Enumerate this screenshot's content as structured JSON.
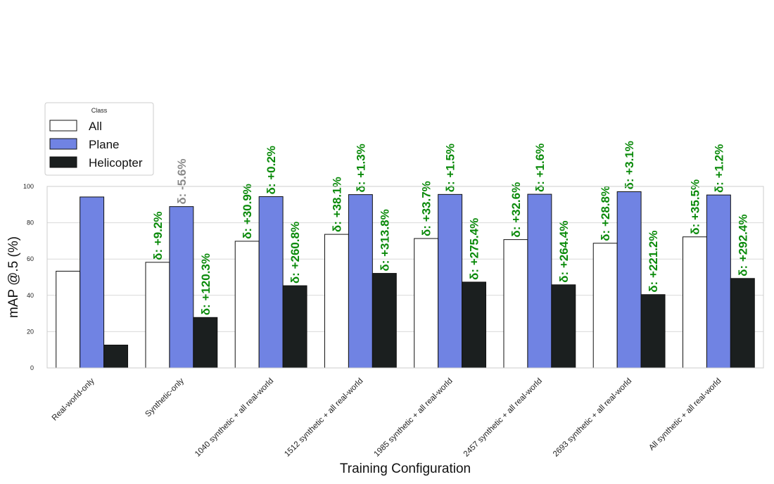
{
  "chart_data": {
    "type": "bar",
    "title": "",
    "xlabel": "Training Configuration",
    "ylabel": "mAP @.5 (%)",
    "ylim": [
      0,
      100
    ],
    "yticks": [
      0,
      20,
      40,
      60,
      80,
      100
    ],
    "grid": true,
    "legend": {
      "title": "Class",
      "placement": "top-left"
    },
    "categories": [
      "Real-world-only",
      "Synthetic-only",
      "1040 synthetic + all real-world",
      "1512 synthetic + all real-world",
      "1985 synthetic + all real-world",
      "2457 synthetic + all real-world",
      "2693 synthetic + all real-world",
      "All synthetic + all real-world"
    ],
    "series": [
      {
        "name": "All",
        "color": "#ffffff",
        "values": [
          53.3,
          58.2,
          69.8,
          73.6,
          71.3,
          70.7,
          68.7,
          72.2
        ],
        "annotations": [
          null,
          "δ: +9.2%",
          "δ: +30.9%",
          "δ: +38.1%",
          "δ: +33.7%",
          "δ: +32.6%",
          "δ: +28.8%",
          "δ: +35.5%"
        ]
      },
      {
        "name": "Plane",
        "color": "#7083e3",
        "values": [
          94.2,
          88.9,
          94.4,
          95.5,
          95.6,
          95.7,
          97.1,
          95.3
        ],
        "annotations": [
          null,
          "δ: -5.6%",
          "δ: +0.2%",
          "δ: +1.3%",
          "δ: +1.5%",
          "δ: +1.6%",
          "δ: +3.1%",
          "δ: +1.2%"
        ]
      },
      {
        "name": "Helicopter",
        "color": "#1b1f1f",
        "values": [
          12.6,
          27.8,
          45.3,
          52.1,
          47.3,
          45.8,
          40.4,
          49.3
        ],
        "annotations": [
          null,
          "δ: +120.3%",
          "δ: +260.8%",
          "δ: +313.8%",
          "δ: +275.4%",
          "δ: +264.4%",
          "δ: +221.2%",
          "δ: +292.4%"
        ]
      }
    ],
    "annotation_colors": {
      "positive": "#0a8a0a",
      "negative": "#8a8a8a"
    }
  }
}
